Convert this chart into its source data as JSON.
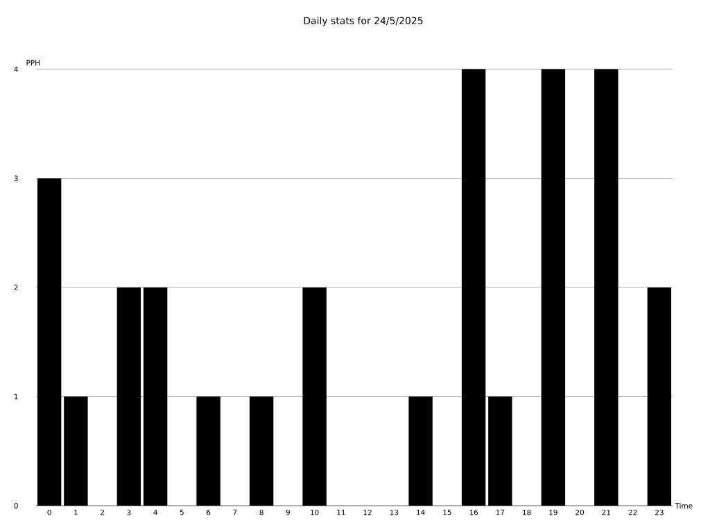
{
  "chart_data": {
    "type": "bar",
    "title": "Daily stats for 24/5/2025",
    "xlabel": "Time",
    "ylabel": "PPH",
    "categories": [
      "0",
      "1",
      "2",
      "3",
      "4",
      "5",
      "6",
      "7",
      "8",
      "9",
      "10",
      "11",
      "12",
      "13",
      "14",
      "15",
      "16",
      "17",
      "18",
      "19",
      "20",
      "21",
      "22",
      "23"
    ],
    "values": [
      3,
      1,
      0,
      2,
      2,
      0,
      1,
      0,
      1,
      0,
      2,
      0,
      0,
      0,
      1,
      0,
      4,
      1,
      0,
      4,
      0,
      4,
      0,
      2
    ],
    "color": "#000000",
    "ylim": [
      0,
      4
    ],
    "yticks": [
      0,
      1,
      2,
      3,
      4
    ],
    "grid": "y"
  }
}
